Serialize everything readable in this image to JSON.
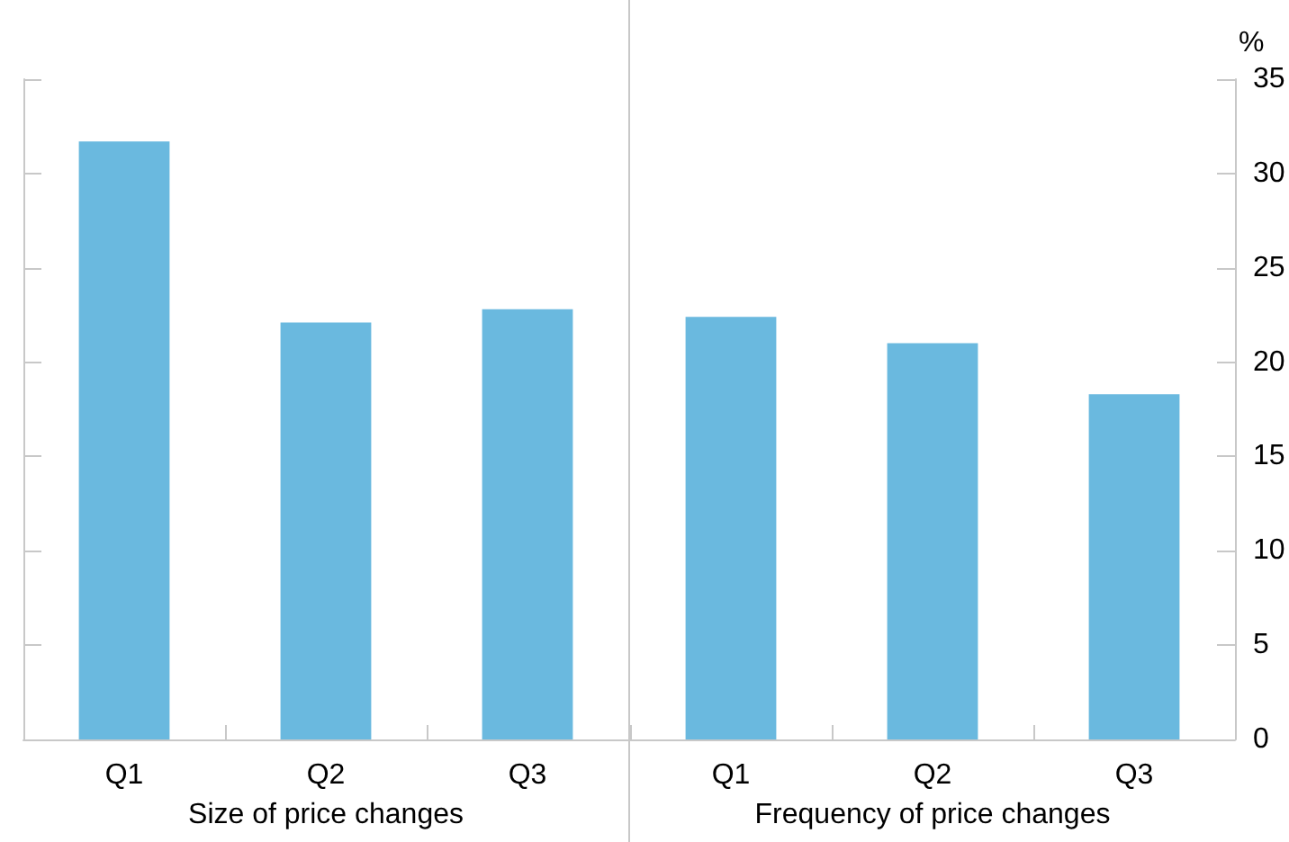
{
  "chart_data": [
    {
      "type": "bar",
      "categories": [
        "Q1",
        "Q2",
        "Q3"
      ],
      "values": [
        31.7,
        22.1,
        22.8
      ],
      "color": "#6ab9df",
      "xlabel": "Size of price changes",
      "ylim": [
        0,
        35
      ],
      "yticks": [
        0,
        5,
        10,
        15,
        20,
        25,
        30,
        35
      ],
      "tick_labels": "x"
    },
    {
      "type": "bar",
      "categories": [
        "Q1",
        "Q2",
        "Q3"
      ],
      "values": [
        22.4,
        21.0,
        18.3
      ],
      "color": "#6ab9df",
      "xlabel": "Frequency of price changes",
      "ylabel": "%",
      "ylim": [
        0,
        35
      ],
      "yticks": [
        0,
        5,
        10,
        15,
        20,
        25,
        30,
        35
      ]
    }
  ]
}
